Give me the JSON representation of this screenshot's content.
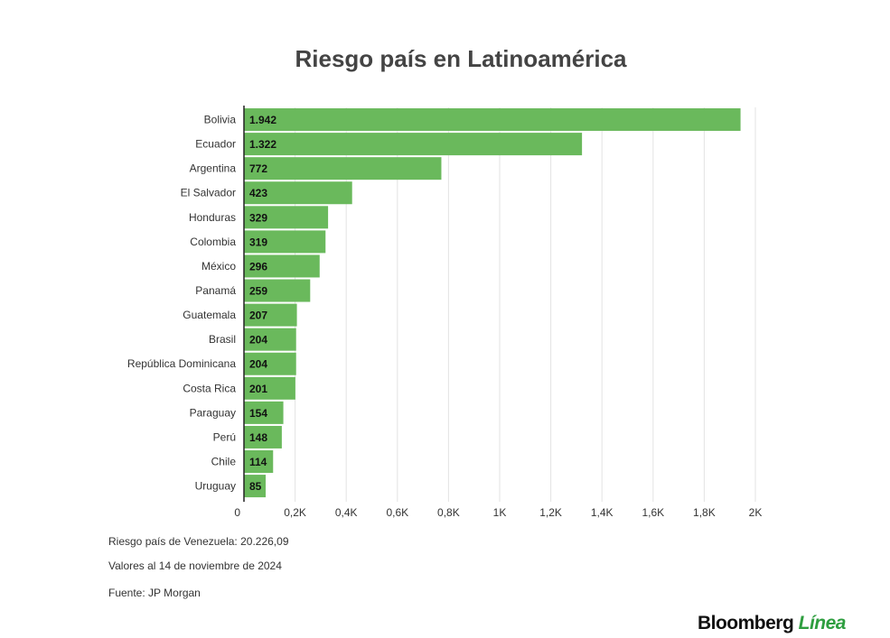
{
  "colors": {
    "bar": "#6ab95c",
    "grid": "#e3e3e3",
    "axis": "#222222"
  },
  "chart_data": {
    "type": "bar",
    "orientation": "horizontal",
    "title": "Riesgo país en Latinoamérica",
    "categories": [
      "Bolivia",
      "Ecuador",
      "Argentina",
      "El Salvador",
      "Honduras",
      "Colombia",
      "México",
      "Panamá",
      "Guatemala",
      "Brasil",
      "República Dominicana",
      "Costa Rica",
      "Paraguay",
      "Perú",
      "Chile",
      "Uruguay"
    ],
    "values": [
      1942,
      1322,
      772,
      423,
      329,
      319,
      296,
      259,
      207,
      204,
      204,
      201,
      154,
      148,
      114,
      85
    ],
    "value_labels": [
      "1.942",
      "1.322",
      "772",
      "423",
      "329",
      "319",
      "296",
      "259",
      "207",
      "204",
      "204",
      "201",
      "154",
      "148",
      "114",
      "85"
    ],
    "xlim": [
      0,
      2000
    ],
    "xticks": [
      0,
      200,
      400,
      600,
      800,
      1000,
      1200,
      1400,
      1600,
      1800,
      2000
    ],
    "xtick_labels": [
      "0",
      "0,2K",
      "0,4K",
      "0,6K",
      "0,8K",
      "1K",
      "1,2K",
      "1,4K",
      "1,6K",
      "1,8K",
      "2K"
    ],
    "grid": true,
    "legend": "none"
  },
  "notes": {
    "venezuela": "Riesgo país de Venezuela: 20.226,09",
    "date": "Valores al 14 de noviembre de 2024",
    "source": "Fuente: JP Morgan"
  },
  "logo": {
    "part1": "Bloomberg",
    "part2": "Línea"
  }
}
